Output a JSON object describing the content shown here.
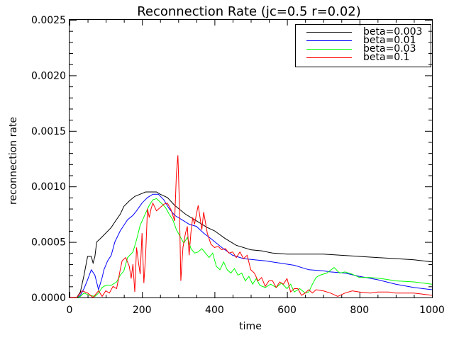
{
  "chart_data": {
    "type": "line",
    "title": "Reconnection Rate (jc=0.5 r=0.02)",
    "xlabel": "time",
    "ylabel": "reconnection rate",
    "xlim": [
      0,
      1000
    ],
    "ylim": [
      0,
      0.0025
    ],
    "xticks": [
      "0",
      "200",
      "400",
      "600",
      "800",
      "1000"
    ],
    "xtick_values": [
      0,
      200,
      400,
      600,
      800,
      1000
    ],
    "yticks": [
      "0.0000",
      "0.0005",
      "0.0010",
      "0.0015",
      "0.0020",
      "0.0025"
    ],
    "ytick_values": [
      0,
      0.0005,
      0.001,
      0.0015,
      0.002,
      0.0025
    ],
    "grid": false,
    "legend_position": "top-right",
    "series": [
      {
        "name": "beta=0.003",
        "color": "#000000",
        "points": [
          [
            0,
            0
          ],
          [
            20,
            0
          ],
          [
            30,
            5e-05
          ],
          [
            40,
            0.0002
          ],
          [
            50,
            0.00037
          ],
          [
            60,
            0.00037
          ],
          [
            65,
            0.00031
          ],
          [
            70,
            0.00037
          ],
          [
            75,
            0.0005
          ],
          [
            85,
            0.00053
          ],
          [
            100,
            0.00058
          ],
          [
            115,
            0.00063
          ],
          [
            125,
            0.00068
          ],
          [
            140,
            0.00075
          ],
          [
            150,
            0.00082
          ],
          [
            165,
            0.00087
          ],
          [
            180,
            0.00091
          ],
          [
            195,
            0.00093
          ],
          [
            210,
            0.00095
          ],
          [
            230,
            0.00095
          ],
          [
            240,
            0.00095
          ],
          [
            250,
            0.00093
          ],
          [
            270,
            0.0009
          ],
          [
            290,
            0.00083
          ],
          [
            320,
            0.00075
          ],
          [
            350,
            0.00069
          ],
          [
            380,
            0.00063
          ],
          [
            400,
            0.0006
          ],
          [
            430,
            0.00053
          ],
          [
            460,
            0.00047
          ],
          [
            500,
            0.00043
          ],
          [
            530,
            0.00042
          ],
          [
            560,
            0.0004
          ],
          [
            600,
            0.00039
          ],
          [
            650,
            0.00039
          ],
          [
            700,
            0.00039
          ],
          [
            750,
            0.00038
          ],
          [
            800,
            0.00037
          ],
          [
            850,
            0.00036
          ],
          [
            900,
            0.00035
          ],
          [
            950,
            0.00034
          ],
          [
            1000,
            0.00032
          ]
        ]
      },
      {
        "name": "beta=0.01",
        "color": "#0000ff",
        "points": [
          [
            0,
            0
          ],
          [
            20,
            0
          ],
          [
            30,
            2e-05
          ],
          [
            40,
            8e-05
          ],
          [
            50,
            0.00016
          ],
          [
            60,
            0.00025
          ],
          [
            70,
            0.0002
          ],
          [
            80,
            7e-05
          ],
          [
            90,
            0.00018
          ],
          [
            95,
            0.00025
          ],
          [
            105,
            0.00033
          ],
          [
            115,
            0.00038
          ],
          [
            125,
            0.0005
          ],
          [
            140,
            0.0006
          ],
          [
            150,
            0.00065
          ],
          [
            160,
            0.0007
          ],
          [
            175,
            0.00074
          ],
          [
            185,
            0.00078
          ],
          [
            200,
            0.00085
          ],
          [
            215,
            0.0009
          ],
          [
            230,
            0.00093
          ],
          [
            245,
            0.00093
          ],
          [
            260,
            0.00088
          ],
          [
            275,
            0.0008
          ],
          [
            290,
            0.00074
          ],
          [
            310,
            0.0007
          ],
          [
            330,
            0.00066
          ],
          [
            350,
            0.00064
          ],
          [
            370,
            0.00058
          ],
          [
            390,
            0.00053
          ],
          [
            420,
            0.00045
          ],
          [
            450,
            0.00038
          ],
          [
            480,
            0.00035
          ],
          [
            510,
            0.00034
          ],
          [
            540,
            0.00033
          ],
          [
            580,
            0.00031
          ],
          [
            620,
            0.00029
          ],
          [
            660,
            0.00025
          ],
          [
            700,
            0.00024
          ],
          [
            720,
            0.00023
          ],
          [
            760,
            0.00022
          ],
          [
            800,
            0.00019
          ],
          [
            850,
            0.00016
          ],
          [
            900,
            0.00012
          ],
          [
            950,
            9e-05
          ],
          [
            1000,
            7e-05
          ]
        ]
      },
      {
        "name": "beta=0.03",
        "color": "#00ff00",
        "points": [
          [
            0,
            0
          ],
          [
            20,
            0
          ],
          [
            30,
            1e-05
          ],
          [
            40,
            4e-05
          ],
          [
            55,
            2e-05
          ],
          [
            70,
            1e-05
          ],
          [
            80,
            4e-05
          ],
          [
            90,
            9e-05
          ],
          [
            100,
            0.00011
          ],
          [
            115,
            0.00011
          ],
          [
            130,
            0.00014
          ],
          [
            140,
            0.0002
          ],
          [
            150,
            0.00024
          ],
          [
            160,
            0.00036
          ],
          [
            175,
            0.00041
          ],
          [
            185,
            0.00052
          ],
          [
            195,
            0.00065
          ],
          [
            210,
            0.00076
          ],
          [
            220,
            0.00083
          ],
          [
            230,
            0.00088
          ],
          [
            240,
            0.00089
          ],
          [
            250,
            0.00086
          ],
          [
            265,
            0.00081
          ],
          [
            275,
            0.00075
          ],
          [
            285,
            0.0007
          ],
          [
            295,
            0.00061
          ],
          [
            305,
            0.00055
          ],
          [
            315,
            0.00049
          ],
          [
            325,
            0.00054
          ],
          [
            335,
            0.00044
          ],
          [
            345,
            0.0004
          ],
          [
            355,
            0.00041
          ],
          [
            365,
            0.00044
          ],
          [
            375,
            0.0004
          ],
          [
            385,
            0.00036
          ],
          [
            395,
            0.0004
          ],
          [
            405,
            0.00028
          ],
          [
            415,
            0.00025
          ],
          [
            425,
            0.00032
          ],
          [
            435,
            0.00025
          ],
          [
            445,
            0.00022
          ],
          [
            455,
            0.00026
          ],
          [
            465,
            0.0002
          ],
          [
            475,
            0.00022
          ],
          [
            485,
            0.00015
          ],
          [
            495,
            0.00019
          ],
          [
            505,
            0.00012
          ],
          [
            515,
            0.00017
          ],
          [
            525,
            0.00011
          ],
          [
            540,
            9e-05
          ],
          [
            555,
            0.00012
          ],
          [
            570,
            9e-05
          ],
          [
            585,
            0.00013
          ],
          [
            600,
            8e-05
          ],
          [
            610,
            0.00012
          ],
          [
            620,
            5e-05
          ],
          [
            635,
            8e-05
          ],
          [
            650,
            4e-05
          ],
          [
            660,
            5e-05
          ],
          [
            670,
            0.00012
          ],
          [
            680,
            0.00018
          ],
          [
            690,
            0.0002
          ],
          [
            710,
            0.00022
          ],
          [
            730,
            0.00027
          ],
          [
            745,
            0.00022
          ],
          [
            760,
            0.00023
          ],
          [
            780,
            0.00021
          ],
          [
            800,
            0.00018
          ],
          [
            830,
            0.00018
          ],
          [
            860,
            0.00017
          ],
          [
            900,
            0.00015
          ],
          [
            950,
            0.00014
          ],
          [
            1000,
            0.00012
          ]
        ]
      },
      {
        "name": "beta=0.1",
        "color": "#ff0000",
        "points": [
          [
            0,
            0
          ],
          [
            20,
            0
          ],
          [
            35,
            6e-05
          ],
          [
            50,
            4e-05
          ],
          [
            65,
            0
          ],
          [
            80,
            6e-05
          ],
          [
            90,
            1e-05
          ],
          [
            100,
            6e-05
          ],
          [
            110,
            4e-05
          ],
          [
            120,
            0.0001
          ],
          [
            130,
            8e-05
          ],
          [
            140,
            0.00025
          ],
          [
            145,
            0.00033
          ],
          [
            155,
            0.00036
          ],
          [
            165,
            0.00028
          ],
          [
            170,
            0.00017
          ],
          [
            175,
            0.0003
          ],
          [
            180,
            5e-05
          ],
          [
            185,
            0.00045
          ],
          [
            190,
            0.00032
          ],
          [
            195,
            0.00021
          ],
          [
            200,
            0.00058
          ],
          [
            205,
            0.00013
          ],
          [
            210,
            0.00038
          ],
          [
            215,
            0.0008
          ],
          [
            220,
            0.00072
          ],
          [
            225,
            0.0008
          ],
          [
            230,
            0.00085
          ],
          [
            240,
            0.00078
          ],
          [
            250,
            0.00081
          ],
          [
            260,
            0.00084
          ],
          [
            270,
            0.00085
          ],
          [
            280,
            0.00079
          ],
          [
            290,
            0.00069
          ],
          [
            295,
            0.00112
          ],
          [
            299,
            0.00128
          ],
          [
            303,
            0.00086
          ],
          [
            307,
            0.00015
          ],
          [
            313,
            0.00045
          ],
          [
            320,
            0.00058
          ],
          [
            325,
            0.00064
          ],
          [
            330,
            0.00038
          ],
          [
            335,
            0.00059
          ],
          [
            340,
            0.00072
          ],
          [
            345,
            0.00066
          ],
          [
            350,
            0.00075
          ],
          [
            355,
            0.00083
          ],
          [
            360,
            0.00072
          ],
          [
            365,
            0.00061
          ],
          [
            370,
            0.00077
          ],
          [
            380,
            0.00058
          ],
          [
            390,
            0.00048
          ],
          [
            400,
            0.00045
          ],
          [
            410,
            0.00046
          ],
          [
            420,
            0.00043
          ],
          [
            430,
            0.00044
          ],
          [
            440,
            0.0004
          ],
          [
            450,
            0.00041
          ],
          [
            460,
            0.00036
          ],
          [
            470,
            0.00041
          ],
          [
            480,
            0.00035
          ],
          [
            490,
            0.00038
          ],
          [
            500,
            0.00025
          ],
          [
            510,
            0.00022
          ],
          [
            520,
            0.00015
          ],
          [
            530,
            0.00018
          ],
          [
            540,
            0.0001
          ],
          [
            550,
            0.00015
          ],
          [
            560,
            0.00015
          ],
          [
            570,
            9e-05
          ],
          [
            580,
            0.00014
          ],
          [
            590,
            0.00012
          ],
          [
            600,
            0.00017
          ],
          [
            610,
            5e-05
          ],
          [
            620,
            8e-05
          ],
          [
            630,
            8e-05
          ],
          [
            640,
            2e-05
          ],
          [
            650,
            4e-05
          ],
          [
            660,
            7e-05
          ],
          [
            670,
            4e-05
          ],
          [
            680,
            7e-05
          ],
          [
            700,
            6e-05
          ],
          [
            720,
            4e-05
          ],
          [
            740,
            1e-05
          ],
          [
            760,
            4e-05
          ],
          [
            780,
            6e-05
          ],
          [
            800,
            5e-05
          ],
          [
            830,
            4e-05
          ],
          [
            850,
            5e-05
          ],
          [
            880,
            5e-05
          ],
          [
            900,
            4e-05
          ],
          [
            950,
            4e-05
          ],
          [
            1000,
            2e-05
          ]
        ]
      }
    ]
  }
}
